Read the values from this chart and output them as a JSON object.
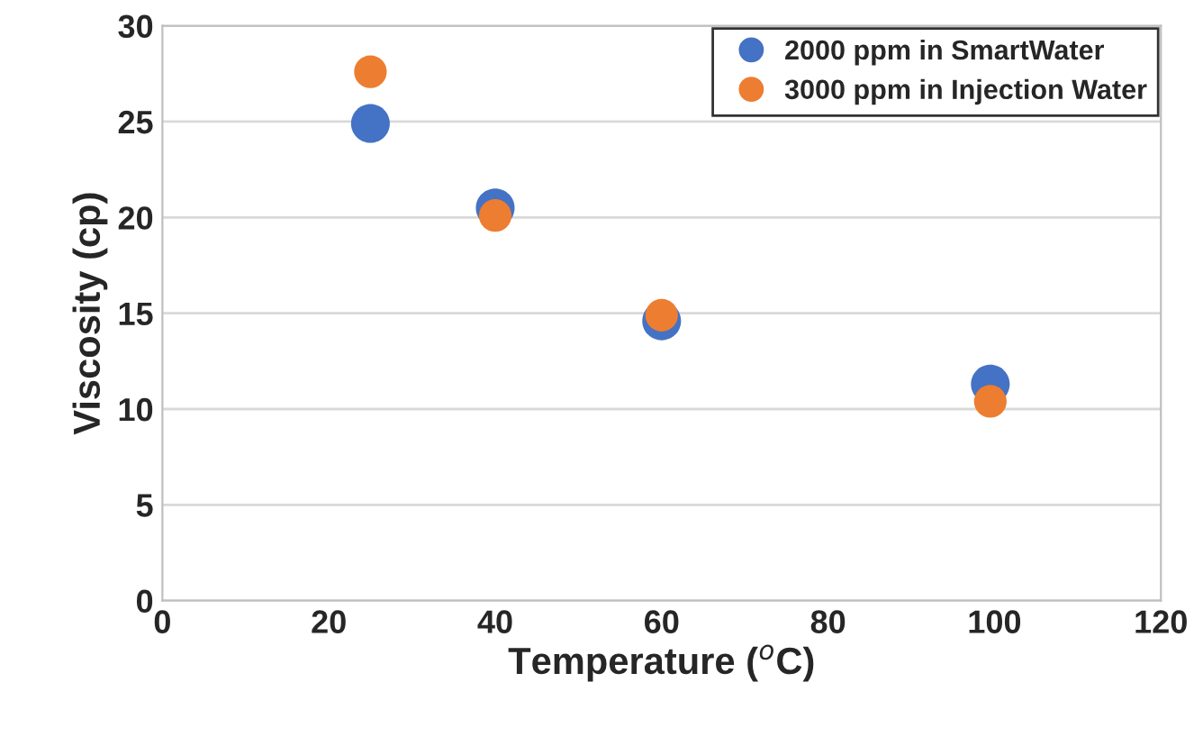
{
  "chart_data": {
    "type": "scatter",
    "xlabel": "Temperature ($^{o}$C)",
    "ylabel": "Viscosity (cp)",
    "xlim": [
      0,
      120
    ],
    "xticks": [
      0,
      20,
      40,
      60,
      80,
      100,
      120
    ],
    "ylim": [
      0,
      30
    ],
    "yticks": [
      0,
      5,
      10,
      15,
      20,
      25,
      30
    ],
    "grid": "y",
    "legend": "top right",
    "marker": "circle",
    "series": [
      {
        "name": "2000 ppm in SmartWater",
        "color": "#4472c4",
        "x": [
          25,
          40,
          60,
          99.5
        ],
        "values": [
          24.9,
          20.5,
          14.6,
          11.3
        ]
      },
      {
        "name": "3000 ppm in Injection Water",
        "color": "#ed7d31",
        "x": [
          25,
          40,
          60,
          99.5
        ],
        "values": [
          27.6,
          20.1,
          14.9,
          10.4
        ]
      }
    ]
  }
}
